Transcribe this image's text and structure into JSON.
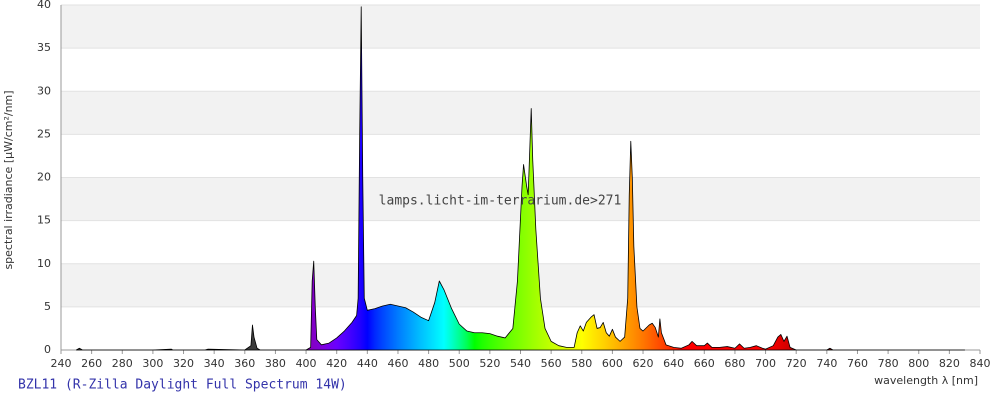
{
  "chart_data": {
    "type": "area",
    "title": "BZL11 (R-Zilla Daylight Full Spectrum 14W)",
    "watermark": "lamps.licht-im-terrarium.de>271",
    "x_label": "wavelength λ [nm]",
    "y_label": "spectral irradiance [µW/cm²/nm]",
    "x": [
      250,
      252,
      254,
      300,
      312,
      313,
      334,
      336,
      360,
      364,
      365,
      366,
      368,
      370,
      400,
      403,
      404,
      405,
      406,
      407,
      410,
      415,
      420,
      425,
      430,
      433,
      434,
      435,
      436,
      437,
      438,
      440,
      445,
      450,
      455,
      460,
      465,
      470,
      475,
      480,
      484,
      487,
      490,
      495,
      500,
      505,
      510,
      515,
      520,
      525,
      530,
      535,
      538,
      541,
      542,
      544,
      545,
      546,
      547,
      548,
      550,
      553,
      556,
      560,
      565,
      570,
      575,
      577,
      579,
      581,
      583,
      586,
      588,
      590,
      592,
      594,
      596,
      598,
      600,
      602,
      605,
      608,
      610,
      611,
      612,
      613,
      614,
      616,
      618,
      620,
      624,
      626,
      628,
      630,
      631,
      632,
      635,
      640,
      645,
      650,
      652,
      655,
      660,
      662,
      665,
      670,
      675,
      680,
      683,
      686,
      690,
      694,
      698,
      700,
      705,
      708,
      710,
      712,
      714,
      716,
      720,
      740,
      742,
      744,
      830
    ],
    "values": [
      0,
      0.2,
      0,
      0,
      0.1,
      0,
      0,
      0.1,
      0,
      0.5,
      2.9,
      1.5,
      0.2,
      0,
      0,
      0.3,
      8,
      10.3,
      5,
      1.2,
      0.6,
      0.8,
      1.4,
      2.2,
      3.2,
      4,
      6,
      25,
      39.8,
      20,
      6,
      4.6,
      4.8,
      5.1,
      5.3,
      5.1,
      4.9,
      4.4,
      3.8,
      3.4,
      5.5,
      8,
      7,
      4.8,
      3,
      2.2,
      2,
      2,
      1.9,
      1.6,
      1.4,
      2.5,
      8,
      19,
      21.5,
      19,
      18,
      23,
      28,
      22,
      14,
      6,
      2.5,
      1,
      0.5,
      0.3,
      0.3,
      2,
      2.8,
      2.2,
      3.2,
      3.8,
      4.1,
      2.5,
      2.6,
      3.2,
      2,
      1.6,
      2.4,
      1.5,
      1,
      1.5,
      6,
      18,
      24.2,
      20,
      12,
      5,
      2.5,
      2.2,
      2.9,
      3.1,
      2.6,
      1.5,
      3.6,
      2,
      0.6,
      0.3,
      0.2,
      0.6,
      1,
      0.5,
      0.5,
      0.8,
      0.3,
      0.3,
      0.4,
      0.2,
      0.7,
      0.2,
      0.3,
      0.5,
      0.2,
      0.1,
      0.5,
      1.5,
      1.8,
      1,
      1.6,
      0.3,
      0,
      0,
      0.2,
      0,
      0
    ],
    "xlim": [
      240,
      840
    ],
    "xticks": [
      240,
      260,
      280,
      300,
      320,
      340,
      360,
      380,
      400,
      420,
      440,
      460,
      480,
      500,
      520,
      540,
      560,
      580,
      600,
      620,
      640,
      660,
      680,
      700,
      720,
      740,
      760,
      780,
      800,
      820,
      840
    ],
    "ylim": [
      0,
      40
    ],
    "yticks": [
      0,
      5,
      10,
      15,
      20,
      25,
      30,
      35,
      40
    ],
    "grid": true
  }
}
